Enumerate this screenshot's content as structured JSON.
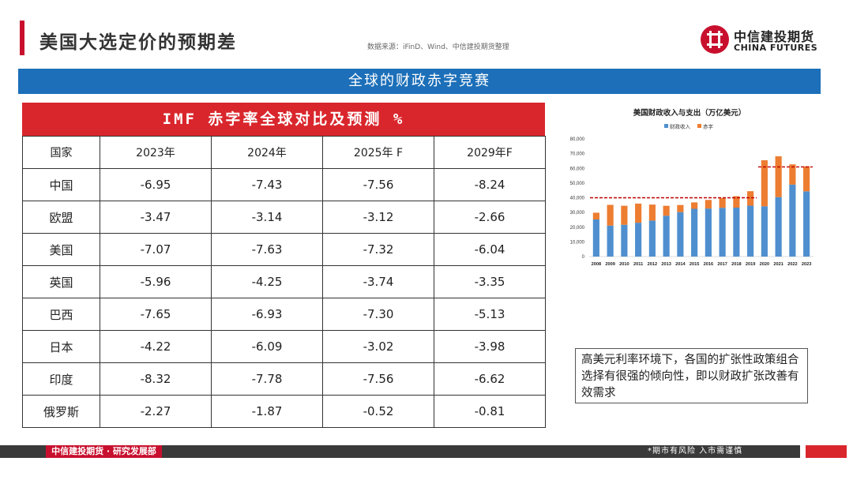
{
  "header": {
    "title": "美国大选定价的预期差",
    "source": "数据来源：iFinD、Wind、中信建投期货整理",
    "logo_cn": "中信建投期货",
    "logo_en": "CHINA FUTURES",
    "accent_color": "#c8102e"
  },
  "banner": {
    "text": "全球的财政赤字竞赛",
    "color": "#1c6fb8"
  },
  "table": {
    "title": "IMF 赤字率全球对比及预测 %",
    "header_color": "#d9262c",
    "columns": [
      "国家",
      "2023年",
      "2024年",
      "2025年 F",
      "2029年F"
    ],
    "rows": [
      [
        "中国",
        "-6.95",
        "-7.43",
        "-7.56",
        "-8.24"
      ],
      [
        "欧盟",
        "-3.47",
        "-3.14",
        "-3.12",
        "-2.66"
      ],
      [
        "美国",
        "-7.07",
        "-7.63",
        "-7.32",
        "-6.04"
      ],
      [
        "英国",
        "-5.96",
        "-4.25",
        "-3.74",
        "-3.35"
      ],
      [
        "巴西",
        "-7.65",
        "-6.93",
        "-7.30",
        "-5.13"
      ],
      [
        "日本",
        "-4.22",
        "-6.09",
        "-3.02",
        "-3.98"
      ],
      [
        "印度",
        "-8.32",
        "-7.78",
        "-7.56",
        "-6.62"
      ],
      [
        "俄罗斯",
        "-2.27",
        "-1.87",
        "-0.52",
        "-0.81"
      ]
    ]
  },
  "chart_data": {
    "type": "bar",
    "stacked": true,
    "title": "美国财政收入与支出（万亿美元）",
    "categories": [
      "2008",
      "2009",
      "2010",
      "2011",
      "2012",
      "2013",
      "2014",
      "2015",
      "2016",
      "2017",
      "2018",
      "2019",
      "2020",
      "2021",
      "2022",
      "2023"
    ],
    "series": [
      {
        "name": "财政收入",
        "color": "#4f8fcf",
        "values": [
          25240,
          21050,
          21630,
          23030,
          24500,
          27750,
          30210,
          32480,
          32680,
          33160,
          33290,
          34620,
          34200,
          40450,
          48970,
          44390
        ]
      },
      {
        "name": "赤字",
        "color": "#ed7d31",
        "values": [
          4590,
          14130,
          12940,
          13000,
          10870,
          6800,
          4850,
          4380,
          5850,
          6650,
          7790,
          9840,
          31320,
          27750,
          13750,
          17000
        ]
      }
    ],
    "ylim": [
      0,
      80000
    ],
    "yticks": [
      "0",
      "10,000",
      "20,000",
      "30,000",
      "40,000",
      "50,000",
      "60,000",
      "70,000",
      "80,000"
    ],
    "reference_lines": [
      {
        "from": "2008",
        "to": "2019",
        "value": 40000,
        "color": "#c00000",
        "style": "dashed"
      },
      {
        "from": "2020",
        "to": "2023",
        "value": 61000,
        "color": "#c00000",
        "style": "dashed"
      }
    ],
    "legend_position": "top",
    "grid": false
  },
  "note": {
    "text": "高美元利率环境下，各国的扩张性政策组合选择有很强的倾向性，即以财政扩张改善有效需求"
  },
  "footer": {
    "brand": "中信建投期货 · 研究发展部",
    "risk": "*期市有风险  入市需谨慎"
  }
}
